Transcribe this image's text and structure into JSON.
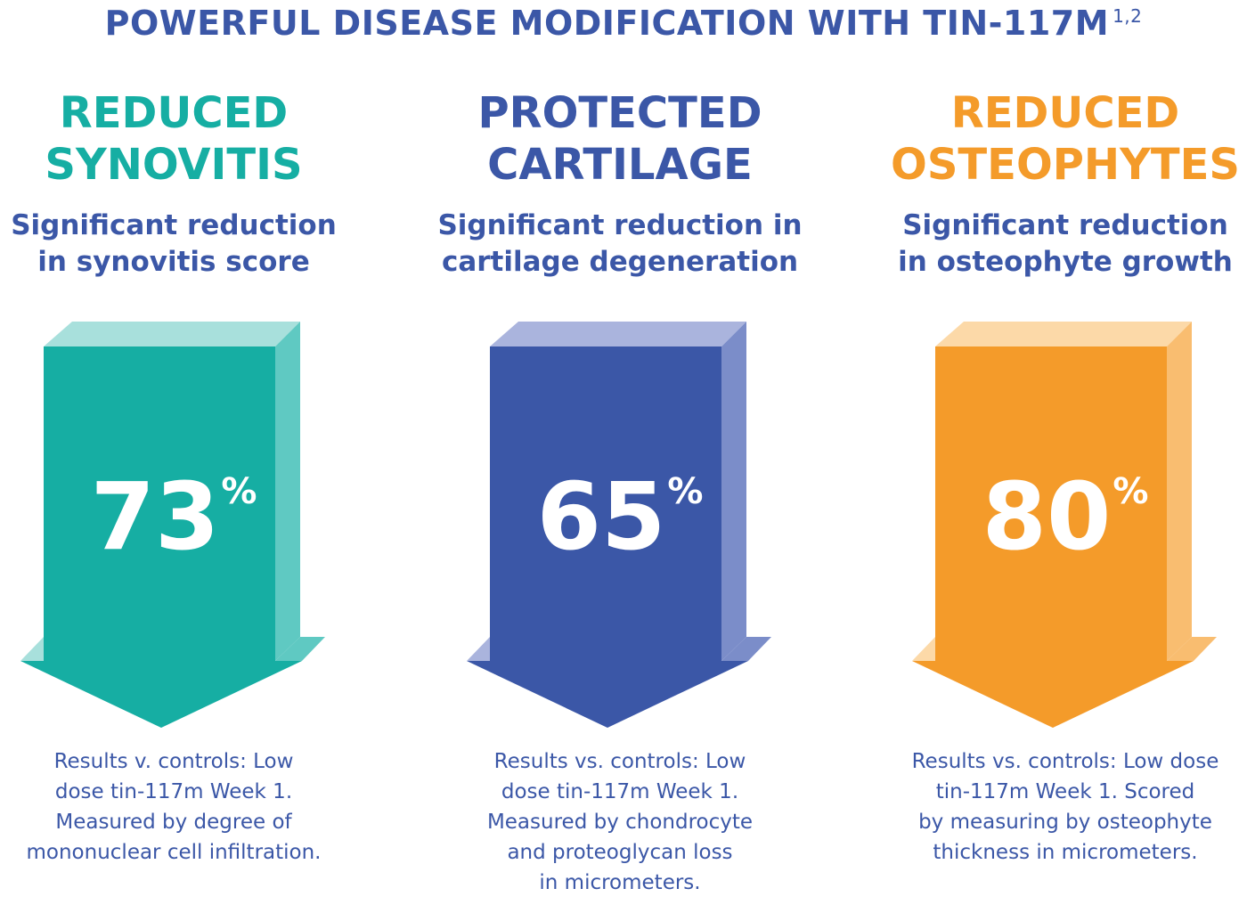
{
  "title": {
    "text": "POWERFUL DISEASE MODIFICATION WITH TIN-117M",
    "superscript": "1,2"
  },
  "colors": {
    "title": "#3b57a7",
    "teal": "#16aea3",
    "teal_light": "#5fc9c2",
    "teal_top": "#a8e0dc",
    "blue": "#3b57a7",
    "blue_light": "#7b8dc9",
    "blue_top": "#aab4dd",
    "orange": "#f49b2a",
    "orange_light": "#f9bd70",
    "orange_top": "#fcd9a8"
  },
  "columns": [
    {
      "heading": [
        "REDUCED",
        "SYNOVITIS"
      ],
      "subheading": [
        "Significant reduction",
        "in synovitis score"
      ],
      "value": "73",
      "unit": "%",
      "note": [
        "Results v. controls: Low",
        "dose tin-117m Week 1.",
        "Measured by degree of",
        "mononuclear cell infiltration."
      ],
      "color_key": "teal"
    },
    {
      "heading": [
        "PROTECTED",
        "CARTILAGE"
      ],
      "subheading": [
        "Significant reduction in",
        "cartilage degeneration"
      ],
      "value": "65",
      "unit": "%",
      "note": [
        "Results vs. controls: Low",
        "dose tin-117m Week 1.",
        "Measured by chondrocyte",
        "and proteoglycan loss",
        "in micrometers."
      ],
      "color_key": "blue"
    },
    {
      "heading": [
        "REDUCED",
        "OSTEOPHYTES"
      ],
      "subheading": [
        "Significant reduction",
        "in osteophyte growth"
      ],
      "value": "80",
      "unit": "%",
      "note": [
        "Results vs. controls: Low dose",
        "tin-117m Week 1. Scored",
        "by measuring by osteophyte",
        "thickness in micrometers."
      ],
      "color_key": "orange"
    }
  ]
}
